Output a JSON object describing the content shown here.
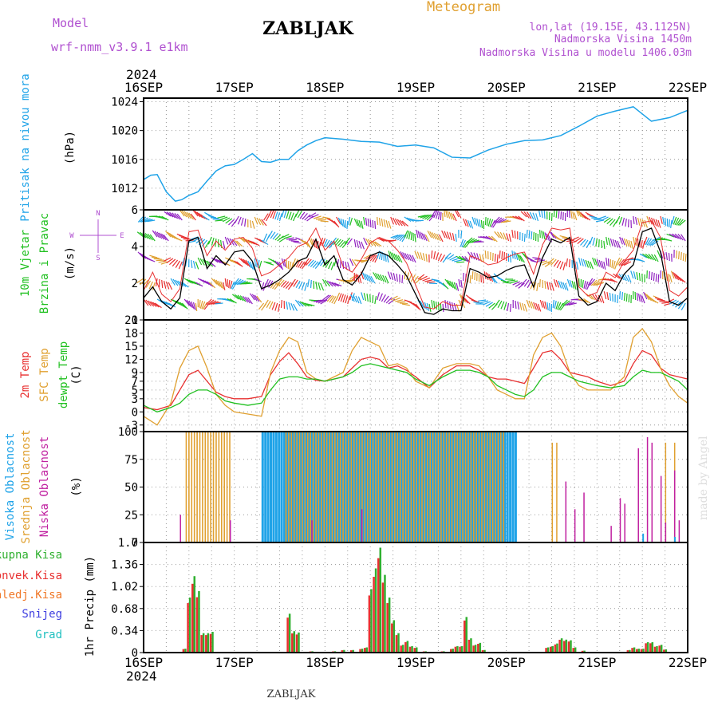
{
  "header": {
    "model_label": "Model",
    "model_name": "wrf-nmm_v3.9.1  e1km",
    "title": "ZABLJAK",
    "meteogram": "Meteogram",
    "lonlat": "lon,lat (19.15E, 43.1125N)",
    "altitude": "Nadmorska Visina 1450m",
    "model_altitude": "Nadmorska Visina u modelu 1406.03m",
    "year_top": "2024",
    "year_bottom": "2024",
    "footer": "ZABLJAK",
    "credit": "made by Angel"
  },
  "compass": {
    "n": "N",
    "s": "S",
    "e": "E",
    "w": "W"
  },
  "colors": {
    "pressure": "#1fa3e8",
    "wind_speed": "#000000",
    "gust": "#e83030",
    "t2m": "#e83030",
    "tsfc": "#e0a030",
    "dewpt": "#20c020",
    "cloud_high": "#1fa3e8",
    "cloud_mid": "#e0a030",
    "cloud_low": "#c020a0",
    "precip_total": "#30b030",
    "precip_conv": "#e83030"
  },
  "chart_data": [
    {
      "type": "line",
      "name": "pressure",
      "ylabel_lines": [
        "Pritisak na nivou mora",
        "(hPa)"
      ],
      "ylim": [
        1009,
        1024.5
      ],
      "yticks": [
        "1012",
        "1016",
        "1020",
        "1024"
      ],
      "ytick_values": [
        1012,
        1016,
        1020,
        1024
      ],
      "x_days": [
        0,
        0.08,
        0.15,
        0.25,
        0.35,
        0.42,
        0.5,
        0.6,
        0.7,
        0.8,
        0.9,
        1.0,
        1.1,
        1.2,
        1.3,
        1.4,
        1.5,
        1.6,
        1.7,
        1.8,
        1.9,
        2.0,
        2.2,
        2.4,
        2.6,
        2.8,
        3.0,
        3.2,
        3.4,
        3.6,
        3.8,
        4.0,
        4.2,
        4.4,
        4.6,
        4.8,
        5.0,
        5.2,
        5.4,
        5.6,
        5.8,
        6.0
      ],
      "values": [
        1013.2,
        1013.8,
        1013.9,
        1011.5,
        1010.2,
        1010.4,
        1011.0,
        1011.5,
        1013.0,
        1014.4,
        1015.1,
        1015.3,
        1016.0,
        1016.8,
        1015.7,
        1015.6,
        1016.0,
        1016.0,
        1017.2,
        1018.0,
        1018.6,
        1019.0,
        1018.8,
        1018.5,
        1018.4,
        1017.8,
        1018.0,
        1017.6,
        1016.3,
        1016.2,
        1017.3,
        1018.1,
        1018.6,
        1018.7,
        1019.3,
        1020.6,
        1022.0,
        1022.7,
        1023.3,
        1021.3,
        1021.8,
        1022.8
      ]
    },
    {
      "type": "line",
      "name": "wind",
      "ylabel_lines": [
        "10m Vjetar",
        "Brzina i Pravac",
        "(m/s)"
      ],
      "ylim": [
        0,
        6
      ],
      "yticks": [
        "0",
        "2",
        "4",
        "6"
      ],
      "ytick_values": [
        0,
        2,
        4,
        6
      ],
      "x_days": [
        0,
        0.1,
        0.2,
        0.3,
        0.4,
        0.5,
        0.6,
        0.7,
        0.8,
        0.9,
        1.0,
        1.1,
        1.2,
        1.3,
        1.4,
        1.5,
        1.6,
        1.7,
        1.8,
        1.9,
        2.0,
        2.1,
        2.2,
        2.3,
        2.4,
        2.5,
        2.6,
        2.7,
        2.8,
        2.9,
        3.0,
        3.1,
        3.2,
        3.3,
        3.4,
        3.5,
        3.6,
        3.7,
        3.8,
        3.9,
        4.0,
        4.1,
        4.2,
        4.3,
        4.4,
        4.5,
        4.6,
        4.7,
        4.8,
        4.9,
        5.0,
        5.1,
        5.2,
        5.3,
        5.4,
        5.5,
        5.6,
        5.7,
        5.8,
        5.9,
        6.0
      ],
      "values": [
        1.2,
        1.8,
        1.0,
        0.6,
        1.2,
        4.3,
        4.5,
        2.8,
        3.5,
        3.0,
        3.7,
        3.8,
        3.2,
        1.7,
        1.9,
        2.2,
        2.6,
        3.2,
        3.4,
        4.4,
        3.0,
        3.5,
        2.2,
        1.9,
        2.5,
        3.5,
        3.7,
        3.5,
        3.0,
        2.4,
        1.4,
        0.4,
        0.3,
        0.6,
        0.5,
        0.5,
        2.8,
        2.6,
        2.3,
        2.4,
        2.7,
        2.9,
        3.0,
        1.8,
        3.4,
        4.4,
        4.2,
        4.5,
        1.3,
        0.8,
        1.0,
        2.0,
        1.6,
        2.5,
        3.0,
        4.8,
        5.0,
        3.7,
        1.0,
        0.8,
        1.2
      ],
      "gust_values": [
        1.6,
        2.6,
        1.4,
        1.0,
        1.7,
        4.8,
        4.9,
        3.5,
        4.3,
        3.8,
        4.4,
        4.5,
        3.9,
        2.4,
        2.6,
        3.0,
        3.4,
        4.0,
        4.2,
        5.0,
        3.8,
        4.3,
        2.9,
        2.6,
        3.3,
        4.2,
        4.5,
        4.3,
        3.8,
        3.1,
        1.9,
        0.7,
        0.6,
        1.0,
        0.8,
        0.8,
        3.5,
        3.3,
        3.0,
        3.1,
        3.4,
        3.6,
        3.7,
        2.5,
        4.1,
        5.0,
        4.9,
        5.0,
        1.8,
        1.3,
        1.5,
        2.6,
        2.3,
        3.2,
        3.8,
        5.3,
        5.4,
        4.5,
        1.6,
        1.3,
        1.8
      ]
    },
    {
      "type": "line",
      "name": "temperature",
      "ylabel_lines": [
        "2m Temp",
        "SFC Temp",
        "dewpt Temp",
        "(C)"
      ],
      "ylim": [
        -4.5,
        21
      ],
      "yticks": [
        "-3",
        "0",
        "3",
        "5",
        "7",
        "9",
        "12",
        "15",
        "18",
        "21"
      ],
      "ytick_values": [
        -3,
        0,
        3,
        5,
        7,
        9,
        12,
        15,
        18,
        21
      ],
      "x_days": [
        0,
        0.15,
        0.3,
        0.4,
        0.5,
        0.6,
        0.7,
        0.8,
        0.9,
        1.0,
        1.15,
        1.3,
        1.4,
        1.5,
        1.6,
        1.7,
        1.8,
        1.9,
        2.0,
        2.1,
        2.2,
        2.3,
        2.4,
        2.5,
        2.6,
        2.7,
        2.8,
        2.9,
        3.0,
        3.15,
        3.3,
        3.45,
        3.6,
        3.7,
        3.8,
        3.9,
        4.0,
        4.1,
        4.2,
        4.3,
        4.4,
        4.5,
        4.6,
        4.7,
        4.8,
        4.9,
        5.0,
        5.15,
        5.3,
        5.4,
        5.5,
        5.6,
        5.7,
        5.8,
        5.9,
        6.0
      ],
      "series": [
        {
          "name": "2m Temp",
          "values": [
            1,
            0.5,
            1.5,
            5,
            8.5,
            9.5,
            7,
            4.5,
            3.5,
            3,
            3,
            3.5,
            8.5,
            11.5,
            13.5,
            11,
            8,
            7.2,
            7,
            7.5,
            8,
            10,
            12,
            12.5,
            12,
            10,
            10.5,
            9.5,
            8,
            5.5,
            8.5,
            10.5,
            10.5,
            9.5,
            8,
            7.5,
            7.5,
            7,
            6.5,
            10,
            13.5,
            14,
            12,
            9,
            8.5,
            8,
            7,
            6,
            7,
            11,
            14,
            13,
            10,
            8.5,
            8,
            7.5
          ]
        },
        {
          "name": "SFC Temp",
          "values": [
            -1,
            -3,
            2,
            10,
            14,
            15,
            10,
            4,
            1.5,
            0,
            -0.5,
            -1,
            9,
            14,
            17,
            16,
            9,
            7.5,
            7,
            8,
            9,
            14,
            17,
            16,
            15,
            10.5,
            11,
            10,
            7,
            5.5,
            10,
            11,
            11,
            10.5,
            8,
            5,
            4,
            3,
            3,
            13,
            17,
            18,
            15,
            9,
            6,
            5,
            5,
            5,
            8,
            17,
            19,
            16,
            10,
            6,
            3.5,
            2
          ]
        },
        {
          "name": "dewpt Temp",
          "values": [
            1.5,
            0,
            1,
            2,
            4,
            5,
            5,
            4,
            2.5,
            2,
            1.5,
            2,
            5,
            7.5,
            8,
            8,
            7.5,
            7.5,
            7,
            7.5,
            8,
            9,
            10.5,
            11,
            10.5,
            10,
            9.5,
            9,
            7.5,
            6,
            8,
            9.5,
            9.5,
            9,
            8,
            6,
            5,
            4,
            3.5,
            5,
            8,
            9,
            9,
            8,
            7,
            6.5,
            6,
            5.5,
            6,
            8,
            9.5,
            9,
            9,
            8,
            7,
            5
          ]
        }
      ]
    },
    {
      "type": "bar",
      "name": "clouds",
      "ylabel_lines": [
        "Visoka Oblacnost",
        "Srednja Oblacnost",
        "Niska Oblacnost",
        "(%)"
      ],
      "ylim": [
        0,
        100
      ],
      "yticks": [
        "0",
        "25",
        "50",
        "75",
        "100"
      ],
      "ytick_values": [
        0,
        25,
        50,
        75,
        100
      ],
      "high_ranges_days": [
        [
          1.3,
          4.1
        ]
      ],
      "mid_ranges_days": [
        [
          0.45,
          0.95
        ],
        [
          1.55,
          3.95
        ]
      ],
      "mid_sparse_days": [
        4.5,
        4.55,
        5.75,
        5.85
      ],
      "low_spikes": [
        [
          0.4,
          25
        ],
        [
          0.95,
          20
        ],
        [
          1.85,
          20
        ],
        [
          2.4,
          30
        ],
        [
          4.65,
          55
        ],
        [
          4.75,
          30
        ],
        [
          4.85,
          45
        ],
        [
          5.15,
          15
        ],
        [
          5.25,
          40
        ],
        [
          5.3,
          35
        ],
        [
          5.45,
          85
        ],
        [
          5.55,
          95
        ],
        [
          5.6,
          90
        ],
        [
          5.7,
          60
        ],
        [
          5.75,
          18
        ],
        [
          5.85,
          65
        ],
        [
          5.9,
          20
        ]
      ],
      "high_sparse": [
        [
          5.5,
          8
        ],
        [
          5.85,
          5
        ]
      ]
    },
    {
      "type": "bar",
      "name": "precip",
      "ylabel_lines": [
        "1hr Precip (mm)"
      ],
      "ylim": [
        0,
        1.7
      ],
      "yticks": [
        "0",
        "0.34",
        "0.68",
        "1.02",
        "1.36",
        "1.7"
      ],
      "ytick_values": [
        0,
        0.34,
        0.68,
        1.02,
        1.36,
        1.7
      ],
      "legend": [
        "Ukupna  Kisa",
        "Konvek.Kisa",
        "Zaledj.Kisa",
        "Snijeg",
        "Grad"
      ],
      "legend_colors": [
        "#30b030",
        "#e83030",
        "#f07828",
        "#4040e0",
        "#20c0c0"
      ],
      "bars": [
        [
          0.45,
          0.06
        ],
        [
          0.5,
          0.85
        ],
        [
          0.55,
          1.18
        ],
        [
          0.6,
          0.95
        ],
        [
          0.65,
          0.3
        ],
        [
          0.7,
          0.3
        ],
        [
          0.75,
          0.32
        ],
        [
          1.6,
          0.6
        ],
        [
          1.65,
          0.33
        ],
        [
          1.7,
          0.31
        ],
        [
          1.85,
          0.02
        ],
        [
          2.1,
          0.02
        ],
        [
          2.2,
          0.04
        ],
        [
          2.3,
          0.04
        ],
        [
          2.4,
          0.06
        ],
        [
          2.45,
          0.08
        ],
        [
          2.5,
          0.98
        ],
        [
          2.55,
          1.3
        ],
        [
          2.6,
          1.62
        ],
        [
          2.65,
          1.2
        ],
        [
          2.7,
          0.85
        ],
        [
          2.75,
          0.5
        ],
        [
          2.8,
          0.3
        ],
        [
          2.85,
          0.12
        ],
        [
          2.9,
          0.18
        ],
        [
          2.95,
          0.1
        ],
        [
          3.0,
          0.08
        ],
        [
          3.1,
          0.02
        ],
        [
          3.3,
          0.02
        ],
        [
          3.4,
          0.06
        ],
        [
          3.45,
          0.1
        ],
        [
          3.5,
          0.1
        ],
        [
          3.55,
          0.55
        ],
        [
          3.6,
          0.22
        ],
        [
          3.65,
          0.12
        ],
        [
          3.7,
          0.15
        ],
        [
          3.75,
          0.04
        ],
        [
          4.45,
          0.08
        ],
        [
          4.5,
          0.1
        ],
        [
          4.55,
          0.14
        ],
        [
          4.6,
          0.22
        ],
        [
          4.65,
          0.2
        ],
        [
          4.7,
          0.19
        ],
        [
          4.75,
          0.08
        ],
        [
          4.85,
          0.03
        ],
        [
          5.35,
          0.04
        ],
        [
          5.4,
          0.08
        ],
        [
          5.45,
          0.06
        ],
        [
          5.5,
          0.06
        ],
        [
          5.55,
          0.16
        ],
        [
          5.6,
          0.16
        ],
        [
          5.65,
          0.1
        ],
        [
          5.7,
          0.12
        ],
        [
          5.75,
          0.05
        ]
      ]
    }
  ],
  "x_axis": {
    "days": [
      "16SEP",
      "17SEP",
      "18SEP",
      "19SEP",
      "20SEP",
      "21SEP",
      "22SEP"
    ]
  }
}
